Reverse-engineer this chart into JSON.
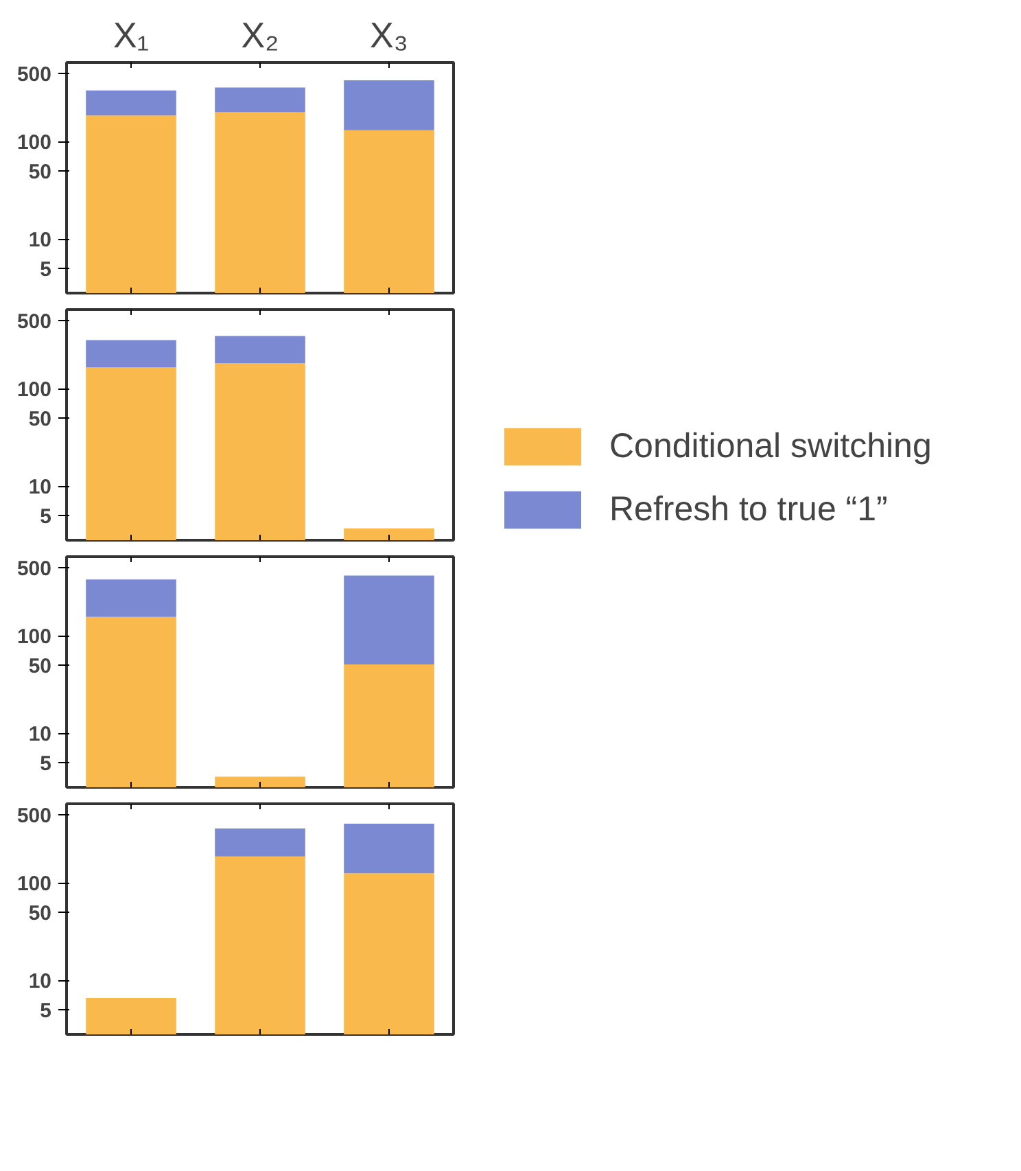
{
  "chart_data": [
    {
      "type": "bar",
      "stacked": true,
      "log": true,
      "categories": [
        "X₁",
        "X₂",
        "X₃"
      ],
      "ylim": [
        2.8,
        650
      ],
      "yticks": [
        5,
        10,
        50,
        100,
        500
      ],
      "grid": false,
      "legend": false,
      "series": [
        {
          "color": "#f9b94d",
          "values": [
            186,
            201,
            131
          ]
        },
        {
          "color": "#7b88d2",
          "values": [
            150,
            158,
            295
          ]
        }
      ]
    },
    {
      "type": "bar",
      "stacked": true,
      "log": true,
      "categories": [
        null,
        null,
        null
      ],
      "ylim": [
        2.8,
        650
      ],
      "yticks": [
        5,
        10,
        50,
        100,
        500
      ],
      "grid": false,
      "legend": "right",
      "tick_labels": "y",
      "series": [
        {
          "name": "Conditional switching",
          "color": "#f9b94d",
          "values": [
            166,
            183,
            3.7
          ]
        },
        {
          "name": "Refresh to true “1”",
          "color": "#7b88d2",
          "values": [
            150,
            165,
            null
          ]
        }
      ]
    },
    {
      "type": "bar",
      "stacked": true,
      "log": true,
      "categories": [
        null,
        null,
        null
      ],
      "ylim": [
        2.8,
        650
      ],
      "yticks": [
        5,
        10,
        50,
        100,
        500
      ],
      "grid": false,
      "legend": false,
      "tick_labels": "y",
      "series": [
        {
          "color": "#f9b94d",
          "values": [
            157,
            3.6,
            51
          ]
        },
        {
          "color": "#7b88d2",
          "values": [
            222,
            null,
            366
          ]
        }
      ]
    },
    {
      "type": "bar",
      "stacked": true,
      "log": true,
      "categories": [
        null,
        null,
        null
      ],
      "ylim": [
        2.8,
        650
      ],
      "yticks": [
        5,
        10,
        50,
        100,
        500
      ],
      "grid": false,
      "legend": false,
      "tick_labels": "y",
      "series": [
        {
          "color": "#f9b94d",
          "values": [
            6.6,
            187,
            126
          ]
        },
        {
          "color": "#7b88d2",
          "values": [
            null,
            175,
            280
          ]
        }
      ]
    }
  ]
}
